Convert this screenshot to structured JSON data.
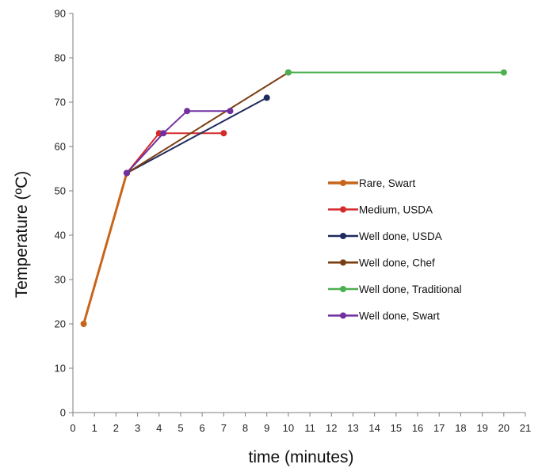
{
  "chart_data": {
    "type": "line",
    "title": "",
    "xlabel": "time (minutes)",
    "ylabel": "Temperature (ºC)",
    "xlim": [
      0,
      21
    ],
    "ylim": [
      0,
      90
    ],
    "xticks": [
      0,
      1,
      2,
      3,
      4,
      5,
      6,
      7,
      8,
      9,
      10,
      11,
      12,
      13,
      14,
      15,
      16,
      17,
      18,
      19,
      20,
      21
    ],
    "yticks": [
      0,
      10,
      20,
      30,
      40,
      50,
      60,
      70,
      80,
      90
    ],
    "grid": false,
    "legend_position": "right",
    "series": [
      {
        "name": "Rare, Swart",
        "color": "#c8651b",
        "width": 3,
        "points": [
          [
            0.5,
            20
          ],
          [
            2.5,
            54
          ]
        ]
      },
      {
        "name": "Medium, USDA",
        "color": "#d42a2a",
        "width": 2,
        "points": [
          [
            2.5,
            54
          ],
          [
            4.0,
            63
          ],
          [
            7.0,
            63
          ]
        ]
      },
      {
        "name": "Well done, USDA",
        "color": "#1f2a5e",
        "width": 2,
        "points": [
          [
            2.5,
            54
          ],
          [
            9.0,
            71
          ]
        ]
      },
      {
        "name": "Well done, Chef",
        "color": "#7a3e12",
        "width": 2,
        "points": [
          [
            2.5,
            54
          ],
          [
            10.0,
            76.7
          ]
        ]
      },
      {
        "name": "Well done, Traditional",
        "color": "#4caf50",
        "width": 2,
        "points": [
          [
            10.0,
            76.7
          ],
          [
            20.0,
            76.7
          ]
        ]
      },
      {
        "name": "Well done, Swart",
        "color": "#7030a0",
        "width": 2,
        "points": [
          [
            2.5,
            54
          ],
          [
            4.2,
            63
          ],
          [
            5.3,
            68
          ],
          [
            7.3,
            68
          ]
        ]
      }
    ]
  }
}
